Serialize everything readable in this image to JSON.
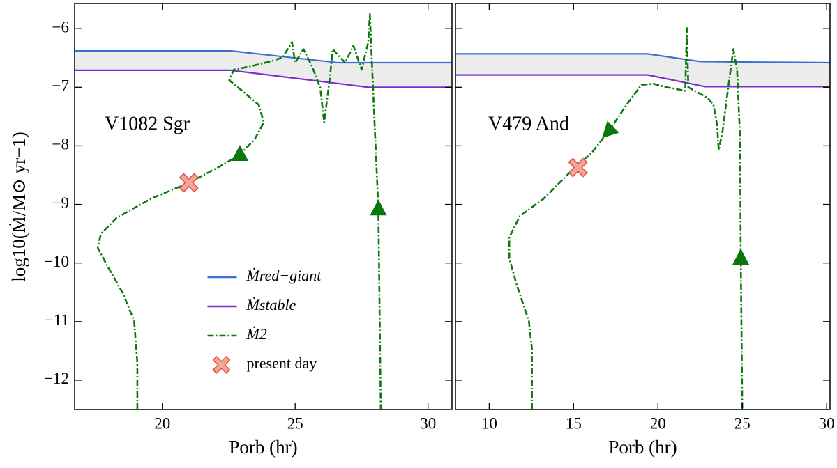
{
  "chart_data": [
    {
      "type": "line",
      "annotation": "V1082 Sgr",
      "x_label": "Porb (hr)",
      "y_label": "log10(Ṁ/M⊙ yr−1)",
      "xlim": [
        16.7,
        30.9
      ],
      "xticks": [
        20,
        25,
        30
      ],
      "ylim": [
        -12.5,
        -5.57
      ],
      "yticks": [
        {
          "value": -6,
          "label": "−6"
        },
        {
          "value": -7,
          "label": "−7"
        },
        {
          "value": -8,
          "label": "−8"
        },
        {
          "value": -9,
          "label": "−9"
        },
        {
          "value": -10,
          "label": "−10"
        },
        {
          "value": -11,
          "label": "−11"
        },
        {
          "value": -12,
          "label": "−12"
        }
      ],
      "fill_between": true,
      "legend": "lower center",
      "series": [
        {
          "name": "Ṁred−giant",
          "color": "#3b6fd6",
          "style": "solid",
          "x": [
            16.7,
            22.6,
            26.6,
            30.9
          ],
          "values": [
            -6.38,
            -6.38,
            -6.58,
            -6.58
          ]
        },
        {
          "name": "Ṁstable",
          "color": "#7a2ed0",
          "style": "solid",
          "x": [
            16.7,
            22.57,
            27.75,
            30.9
          ],
          "values": [
            -6.71,
            -6.71,
            -7.0,
            -7.0
          ]
        },
        {
          "name": "Ṁ2",
          "color": "#0b780b",
          "style": "dashdot",
          "x": [
            19.06,
            19.06,
            18.94,
            18.51,
            17.92,
            17.57,
            17.69,
            18.28,
            19.58,
            21.0,
            22.17,
            22.92,
            23.47,
            23.82,
            23.63,
            23.0,
            22.52,
            22.69,
            23.35,
            24.06,
            24.53,
            24.88,
            25.0,
            25.31,
            25.63,
            25.94,
            26.09,
            26.31,
            26.41,
            26.88,
            27.19,
            27.5,
            27.75,
            27.81,
            27.91,
            28.13,
            28.22
          ],
          "values": [
            -12.5,
            -11.7,
            -10.99,
            -10.51,
            -10.04,
            -9.74,
            -9.5,
            -9.23,
            -8.9,
            -8.63,
            -8.35,
            -8.15,
            -7.89,
            -7.6,
            -7.3,
            -7.06,
            -6.88,
            -6.7,
            -6.64,
            -6.56,
            -6.49,
            -6.23,
            -6.58,
            -6.35,
            -6.64,
            -7.0,
            -7.6,
            -6.82,
            -6.35,
            -6.58,
            -6.29,
            -6.7,
            -6.23,
            -5.75,
            -6.82,
            -9.08,
            -12.5
          ]
        },
        {
          "name": "present day",
          "color": "#f4a595",
          "edgecolor": "#e0504a",
          "marker": "x",
          "x": [
            21.0
          ],
          "values": [
            -8.63
          ]
        }
      ]
    },
    {
      "type": "line",
      "annotation": "V479 And",
      "x_label": "Porb (hr)",
      "xlim": [
        8,
        30.2
      ],
      "xticks": [
        10,
        15,
        20,
        25,
        30
      ],
      "ylim": [
        -12.5,
        -5.57
      ],
      "yticks": [
        -6,
        -7,
        -8,
        -9,
        -10,
        -11,
        -12
      ],
      "fill_between": true,
      "series": [
        {
          "color": "#3b6fd6",
          "style": "solid",
          "x": [
            8,
            19.4,
            22.5,
            25,
            30.2
          ],
          "values": [
            -6.43,
            -6.43,
            -6.56,
            -6.57,
            -6.58
          ]
        },
        {
          "color": "#7a2ed0",
          "style": "solid",
          "x": [
            8,
            19.4,
            22.8,
            30.2
          ],
          "values": [
            -6.79,
            -6.79,
            -6.99,
            -6.99
          ]
        },
        {
          "color": "#0b780b",
          "style": "dashdot",
          "x": [
            12.53,
            12.53,
            12.35,
            11.65,
            11.19,
            11.19,
            11.82,
            13.23,
            15.0,
            16.04,
            17.09,
            18.14,
            19.02,
            19.72,
            20.53,
            21.62,
            21.71,
            21.8,
            22.94,
            23.29,
            23.51,
            23.6,
            23.82,
            24.25,
            24.47,
            24.69,
            24.87,
            24.91,
            25.0
          ],
          "values": [
            -12.5,
            -11.46,
            -10.99,
            -10.39,
            -9.92,
            -9.56,
            -9.2,
            -8.9,
            -8.39,
            -8.13,
            -7.75,
            -7.3,
            -6.96,
            -6.94,
            -7.0,
            -7.06,
            -5.99,
            -7.0,
            -7.18,
            -7.3,
            -7.65,
            -8.07,
            -7.77,
            -6.82,
            -6.35,
            -6.7,
            -7.89,
            -9.92,
            -12.5
          ]
        },
        {
          "color": "#f4a595",
          "edgecolor": "#e0504a",
          "marker": "x",
          "x": [
            15.26
          ],
          "values": [
            -8.37
          ]
        }
      ]
    }
  ]
}
